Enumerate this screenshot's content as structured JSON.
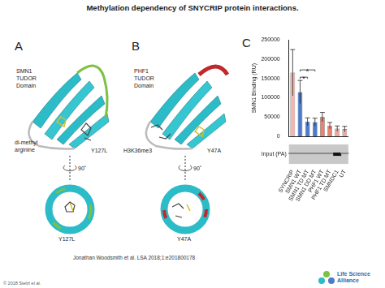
{
  "header": {
    "title": "Methylation dependency of SNYCRIP protein interactions."
  },
  "panels": [
    {
      "letter": "A",
      "domain_label": [
        "SMN1",
        "TUDOR",
        "Domain"
      ],
      "ligand": [
        "di-methyl",
        "arginine"
      ],
      "mutation_top": "Y127L",
      "rotation": "90˚",
      "mutation_bottom": "Y127L"
    },
    {
      "letter": "B",
      "domain_label": [
        "PHF1",
        "TUDOR",
        "Domain"
      ],
      "ligand": [
        "H3K36me3"
      ],
      "mutation_top": "Y47A",
      "rotation": "90˚",
      "mutation_bottom": "Y47A"
    }
  ],
  "chart_data": {
    "type": "bar",
    "panel": "C",
    "y_label": "SMN1 Binding (RU)",
    "categories": [
      "SYNCRIP",
      "SMN1 WT",
      "SMN1 TD MT",
      "SMN1 DD MT",
      "PHF1 WT",
      "PHF1 TD MT",
      "SMNDC1",
      "UT"
    ],
    "values": [
      165000,
      115000,
      38000,
      37000,
      50000,
      28000,
      20000,
      19000
    ],
    "errors": [
      60000,
      30000,
      10000,
      10000,
      12000,
      8000,
      7000,
      7000
    ],
    "colors": [
      "#f2b5b0",
      "#4c7bc9",
      "#4c7bc9",
      "#4c7bc9",
      "#e9836f",
      "#e9836f",
      "#e9a9a3",
      "#e9a9a3"
    ],
    "ylim": [
      0,
      250000
    ],
    "yticks": [
      0,
      50000,
      100000,
      150000,
      200000,
      250000
    ],
    "grid": false,
    "annotations": [
      {
        "from": "SMN1 WT",
        "to": "SMN1 TD MT",
        "text": "*"
      },
      {
        "from": "SMN1 WT",
        "to": "SMN1 DD MT",
        "text": "*"
      }
    ],
    "gel_label": "Input (PA)"
  },
  "footer": {
    "citation": "Jonathan Woodsmith et al. LSA 2018;1:e201800178",
    "copyright": "© 2018 Stelzl et al.",
    "logo": [
      "Life Science",
      "Alliance"
    ]
  }
}
